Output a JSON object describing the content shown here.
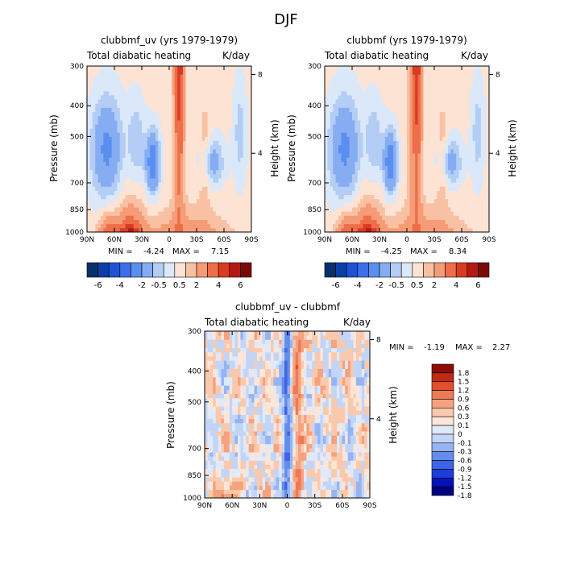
{
  "page_title": "DJF",
  "colors": {
    "panel_scale": [
      "#08306b",
      "#0b3fa6",
      "#1f53d6",
      "#3c6fe8",
      "#5a8ef0",
      "#86acf2",
      "#b3cdf5",
      "#dbe8f9",
      "#fde3d4",
      "#f9c1a3",
      "#f59c76",
      "#ee6e4a",
      "#db3b23",
      "#b51a12",
      "#7a0a05"
    ],
    "diff_scale": [
      "#00007f",
      "#0014b8",
      "#1e3cd8",
      "#3c64e6",
      "#648cec",
      "#96b4f2",
      "#c3d5f7",
      "#dfe9fa",
      "#fde6d8",
      "#fac9ad",
      "#f5a27f",
      "#ee7a55",
      "#e0502e",
      "#c02a15",
      "#8b0d06"
    ]
  },
  "chart_data": [
    {
      "type": "heatmap",
      "title": "clubbmf_uv (yrs 1979-1979)",
      "subtitle_left": "Total diabatic heating",
      "subtitle_right": "K/day",
      "ylabel": "Pressure (mb)",
      "ylabel_right": "Height (km)",
      "x_ticks": [
        "90N",
        "60N",
        "30N",
        "0",
        "30S",
        "60S",
        "90S"
      ],
      "y_ticks": [
        "300",
        "400",
        "500",
        "700",
        "850",
        "1000"
      ],
      "y_right_ticks": [
        "8",
        "4"
      ],
      "min_label": "MIN =",
      "min_value": "-4.24",
      "max_label": "MAX =",
      "max_value": "7.15",
      "colorbar_labels": [
        "-6",
        "-4",
        "-2",
        "-0.5",
        "0.5",
        "2",
        "4",
        "6"
      ]
    },
    {
      "type": "heatmap",
      "title": "clubbmf (yrs 1979-1979)",
      "subtitle_left": "Total diabatic heating",
      "subtitle_right": "K/day",
      "ylabel": "Pressure (mb)",
      "ylabel_right": "Height (km)",
      "x_ticks": [
        "90N",
        "60N",
        "30N",
        "0",
        "30S",
        "60S",
        "90S"
      ],
      "y_ticks": [
        "300",
        "400",
        "500",
        "700",
        "850",
        "1000"
      ],
      "y_right_ticks": [
        "8",
        "4"
      ],
      "min_label": "MIN =",
      "min_value": "-4.25",
      "max_label": "MAX =",
      "max_value": "8.34",
      "colorbar_labels": [
        "-6",
        "-4",
        "-2",
        "-0.5",
        "0.5",
        "2",
        "4",
        "6"
      ]
    },
    {
      "type": "heatmap",
      "title": "clubbmf_uv - clubbmf",
      "subtitle_left": "Total diabatic heating",
      "subtitle_right": "K/day",
      "ylabel": "Pressure (mb)",
      "ylabel_right": "Height (km)",
      "x_ticks": [
        "90N",
        "60N",
        "30N",
        "0",
        "30S",
        "60S",
        "90S"
      ],
      "y_ticks": [
        "300",
        "400",
        "500",
        "700",
        "850",
        "1000"
      ],
      "y_right_ticks": [
        "8",
        "4"
      ],
      "min_label": "MIN =",
      "min_value": "-1.19",
      "max_label": "MAX =",
      "max_value": "2.27",
      "colorbar_labels": [
        "1.8",
        "1.5",
        "1.2",
        "0.9",
        "0.6",
        "0.3",
        "0.1",
        "0",
        "-0.1",
        "-0.3",
        "-0.6",
        "-0.9",
        "-1.2",
        "-1.5",
        "-1.8"
      ]
    }
  ]
}
